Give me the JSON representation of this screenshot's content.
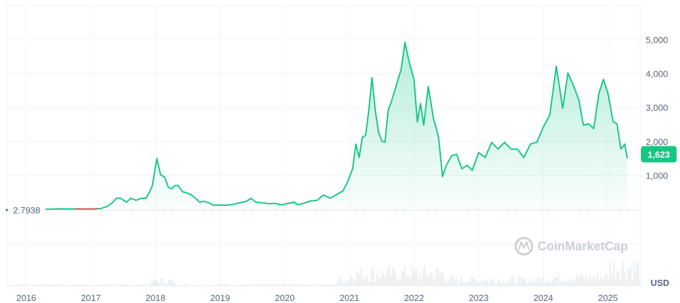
{
  "chart_data": {
    "type": "area",
    "currency_label": "USD",
    "watermark": "CoinMarketCap",
    "start_price_label": "2.7938",
    "current_price_label": "1,623",
    "current_price": 1623,
    "start_price": 2.7938,
    "y_ticks": [
      {
        "value": 1000,
        "label": "1,000"
      },
      {
        "value": 2000,
        "label": "2,000"
      },
      {
        "value": 3000,
        "label": "3,000"
      },
      {
        "value": 4000,
        "label": "4,000"
      },
      {
        "value": 5000,
        "label": "5,000"
      }
    ],
    "x_ticks": [
      {
        "value": 2016,
        "label": "2016"
      },
      {
        "value": 2017,
        "label": "2017"
      },
      {
        "value": 2018,
        "label": "2018"
      },
      {
        "value": 2019,
        "label": "2019"
      },
      {
        "value": 2020,
        "label": "2020"
      },
      {
        "value": 2021,
        "label": "2021"
      },
      {
        "value": 2022,
        "label": "2022"
      },
      {
        "value": 2023,
        "label": "2023"
      },
      {
        "value": 2024,
        "label": "2024"
      },
      {
        "value": 2025,
        "label": "2025"
      }
    ],
    "xlim": [
      2015.7,
      2025.5
    ],
    "ylim": [
      0,
      5000
    ],
    "grid": true,
    "colors": {
      "line": "#16c784",
      "fill": "#16c784",
      "start_segment": "#ea3943",
      "grid": "#eff2f5",
      "badge": "#16c784",
      "volume": "#e6e9ee"
    },
    "series": [
      {
        "values": [
          [
            2016.3,
            3
          ],
          [
            2016.5,
            12
          ],
          [
            2016.7,
            11
          ],
          [
            2016.9,
            9
          ],
          [
            2017.05,
            10
          ],
          [
            2017.15,
            20
          ],
          [
            2017.25,
            90
          ],
          [
            2017.33,
            180
          ],
          [
            2017.4,
            360
          ],
          [
            2017.46,
            300
          ],
          [
            2017.55,
            230
          ],
          [
            2017.62,
            300
          ],
          [
            2017.7,
            290
          ],
          [
            2017.78,
            300
          ],
          [
            2017.85,
            350
          ],
          [
            2017.9,
            450
          ],
          [
            2017.95,
            750
          ],
          [
            2018.02,
            1385
          ],
          [
            2018.08,
            1100
          ],
          [
            2018.14,
            880
          ],
          [
            2018.2,
            700
          ],
          [
            2018.25,
            560
          ],
          [
            2018.3,
            760
          ],
          [
            2018.35,
            650
          ],
          [
            2018.42,
            560
          ],
          [
            2018.48,
            450
          ],
          [
            2018.55,
            470
          ],
          [
            2018.62,
            300
          ],
          [
            2018.68,
            230
          ],
          [
            2018.75,
            220
          ],
          [
            2018.82,
            210
          ],
          [
            2018.9,
            110
          ],
          [
            2019.0,
            140
          ],
          [
            2019.1,
            110
          ],
          [
            2019.2,
            160
          ],
          [
            2019.3,
            180
          ],
          [
            2019.4,
            250
          ],
          [
            2019.48,
            300
          ],
          [
            2019.55,
            230
          ],
          [
            2019.65,
            180
          ],
          [
            2019.75,
            180
          ],
          [
            2019.85,
            160
          ],
          [
            2019.95,
            140
          ],
          [
            2020.05,
            160
          ],
          [
            2020.15,
            230
          ],
          [
            2020.2,
            120
          ],
          [
            2020.3,
            200
          ],
          [
            2020.4,
            230
          ],
          [
            2020.5,
            290
          ],
          [
            2020.6,
            390
          ],
          [
            2020.7,
            360
          ],
          [
            2020.8,
            400
          ],
          [
            2020.9,
            590
          ],
          [
            2020.97,
            740
          ],
          [
            2021.05,
            1300
          ],
          [
            2021.1,
            1800
          ],
          [
            2021.15,
            1650
          ],
          [
            2021.2,
            2000
          ],
          [
            2021.25,
            2300
          ],
          [
            2021.3,
            2800
          ],
          [
            2021.35,
            4000
          ],
          [
            2021.4,
            2800
          ],
          [
            2021.45,
            2400
          ],
          [
            2021.5,
            1900
          ],
          [
            2021.55,
            2100
          ],
          [
            2021.6,
            2800
          ],
          [
            2021.65,
            3300
          ],
          [
            2021.72,
            3500
          ],
          [
            2021.8,
            4250
          ],
          [
            2021.86,
            4800
          ],
          [
            2021.92,
            4500
          ],
          [
            2022.0,
            3700
          ],
          [
            2022.05,
            2700
          ],
          [
            2022.1,
            3000
          ],
          [
            2022.15,
            2600
          ],
          [
            2022.22,
            3500
          ],
          [
            2022.3,
            2800
          ],
          [
            2022.38,
            2000
          ],
          [
            2022.44,
            1050
          ],
          [
            2022.5,
            1200
          ],
          [
            2022.58,
            1700
          ],
          [
            2022.66,
            1500
          ],
          [
            2022.74,
            1300
          ],
          [
            2022.82,
            1200
          ],
          [
            2022.9,
            1250
          ],
          [
            2023.0,
            1550
          ],
          [
            2023.1,
            1650
          ],
          [
            2023.2,
            1850
          ],
          [
            2023.3,
            1900
          ],
          [
            2023.4,
            1850
          ],
          [
            2023.5,
            1900
          ],
          [
            2023.6,
            1650
          ],
          [
            2023.7,
            1650
          ],
          [
            2023.8,
            1800
          ],
          [
            2023.9,
            2100
          ],
          [
            2024.0,
            2300
          ],
          [
            2024.1,
            2900
          ],
          [
            2024.2,
            4100
          ],
          [
            2024.3,
            3100
          ],
          [
            2024.38,
            3900
          ],
          [
            2024.46,
            3800
          ],
          [
            2024.55,
            3100
          ],
          [
            2024.62,
            2600
          ],
          [
            2024.7,
            2400
          ],
          [
            2024.78,
            2500
          ],
          [
            2024.86,
            3300
          ],
          [
            2024.93,
            3950
          ],
          [
            2025.0,
            3300
          ],
          [
            2025.08,
            2700
          ],
          [
            2025.14,
            2400
          ],
          [
            2025.2,
            1900
          ],
          [
            2025.26,
            1800
          ],
          [
            2025.3,
            1623
          ]
        ]
      }
    ]
  }
}
